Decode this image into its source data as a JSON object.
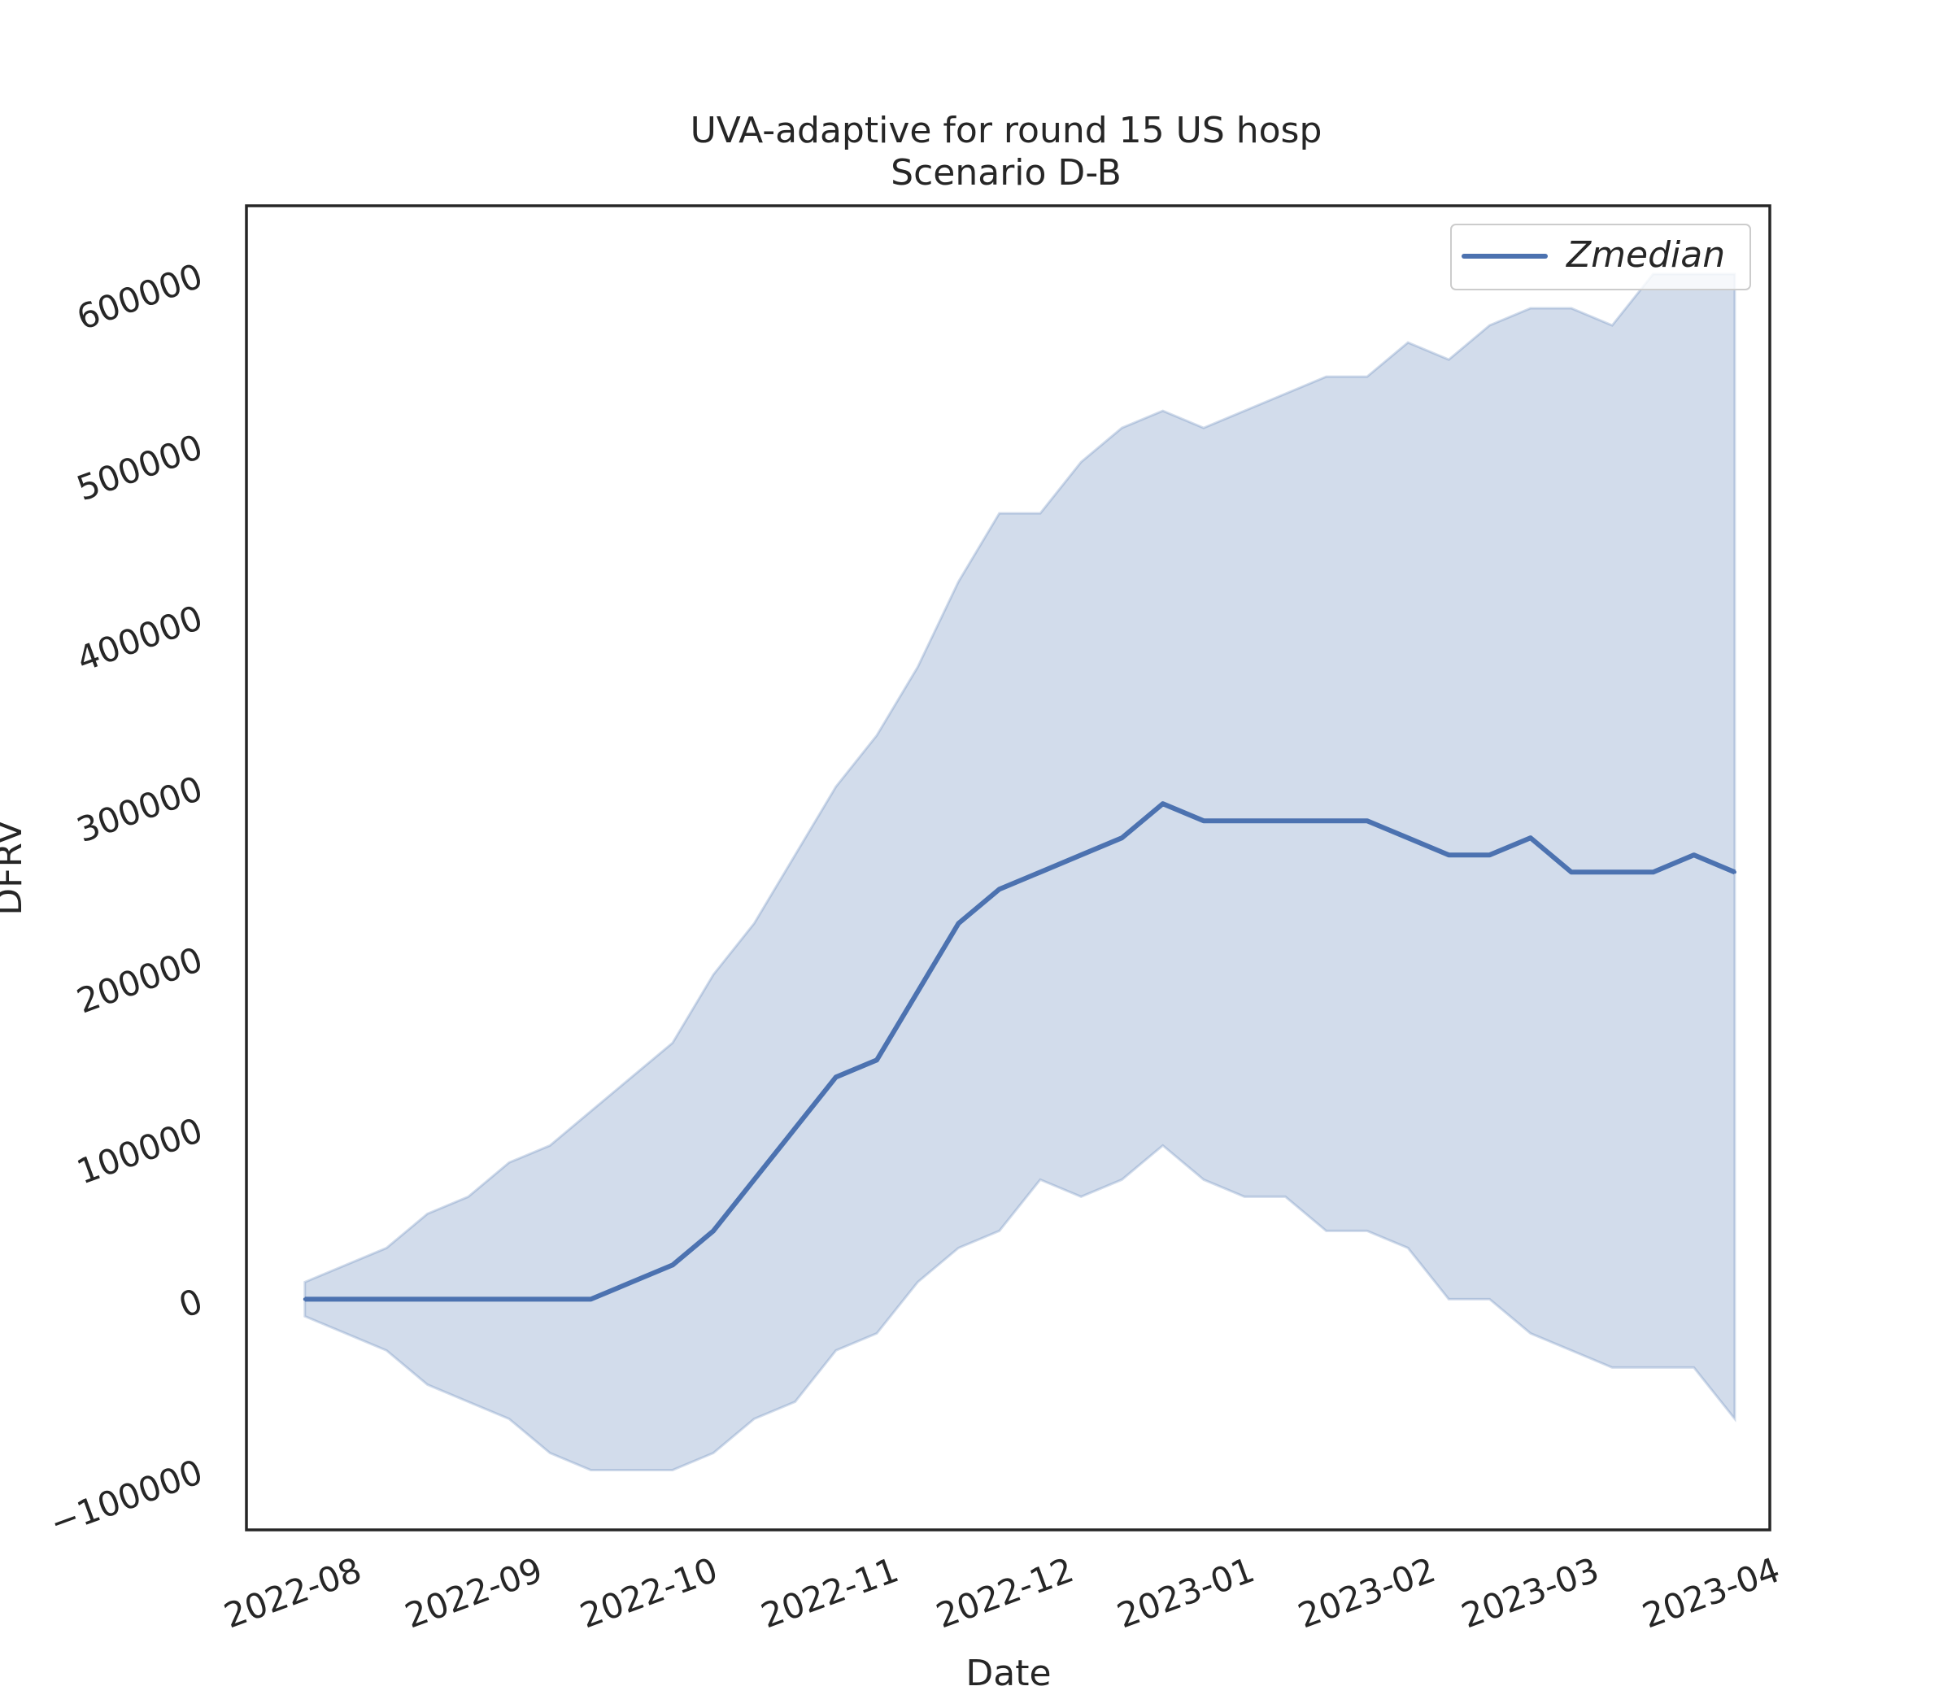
{
  "chart_data": {
    "type": "line",
    "title": "UVA-adaptive for round 15 US hosp",
    "subtitle": "Scenario D-B",
    "xlabel": "Date",
    "ylabel": "DFRV",
    "xlim": [
      "2022-07-13",
      "2023-03-31"
    ],
    "ylim": [
      -135000,
      640000
    ],
    "x_ticks": [
      "2022-08",
      "2022-09",
      "2022-10",
      "2022-11",
      "2022-12",
      "2023-01",
      "2023-02",
      "2023-03",
      "2023-04"
    ],
    "y_ticks": [
      -100000,
      0,
      100000,
      200000,
      300000,
      400000,
      500000,
      600000
    ],
    "y_tick_labels": [
      "−100000",
      "0",
      "100000",
      "200000",
      "300000",
      "400000",
      "500000",
      "600000"
    ],
    "grid": false,
    "legend": {
      "position": "top-right",
      "entries": [
        "Zmedian"
      ]
    },
    "colors": {
      "line": "#4c72b0",
      "band": "#4c72b0"
    },
    "x": [
      "2022-07-23",
      "2022-07-30",
      "2022-08-06",
      "2022-08-13",
      "2022-08-20",
      "2022-08-27",
      "2022-09-03",
      "2022-09-10",
      "2022-09-17",
      "2022-09-24",
      "2022-10-01",
      "2022-10-08",
      "2022-10-15",
      "2022-10-22",
      "2022-10-29",
      "2022-11-05",
      "2022-11-12",
      "2022-11-19",
      "2022-11-26",
      "2022-12-03",
      "2022-12-10",
      "2022-12-17",
      "2022-12-24",
      "2022-12-31",
      "2023-01-07",
      "2023-01-14",
      "2023-01-21",
      "2023-01-28",
      "2023-02-04",
      "2023-02-11",
      "2023-02-18",
      "2023-02-25",
      "2023-03-04",
      "2023-03-11",
      "2023-03-18",
      "2023-03-25"
    ],
    "series": [
      {
        "name": "Zmedian",
        "values": [
          0,
          0,
          0,
          0,
          0,
          0,
          0,
          0,
          10000,
          20000,
          40000,
          70000,
          100000,
          130000,
          140000,
          180000,
          220000,
          240000,
          250000,
          260000,
          270000,
          290000,
          280000,
          280000,
          280000,
          280000,
          280000,
          270000,
          260000,
          260000,
          270000,
          250000,
          250000,
          250000,
          260000,
          250000
        ]
      }
    ],
    "band": {
      "upper": [
        10000,
        20000,
        30000,
        50000,
        60000,
        80000,
        90000,
        110000,
        130000,
        150000,
        190000,
        220000,
        260000,
        300000,
        330000,
        370000,
        420000,
        460000,
        460000,
        490000,
        510000,
        520000,
        510000,
        520000,
        530000,
        540000,
        540000,
        560000,
        550000,
        570000,
        580000,
        580000,
        570000,
        600000,
        600000,
        600000
      ],
      "lower": [
        -10000,
        -20000,
        -30000,
        -50000,
        -60000,
        -70000,
        -90000,
        -100000,
        -100000,
        -100000,
        -90000,
        -70000,
        -60000,
        -30000,
        -20000,
        10000,
        30000,
        40000,
        70000,
        60000,
        70000,
        90000,
        70000,
        60000,
        60000,
        40000,
        40000,
        30000,
        0,
        0,
        -20000,
        -30000,
        -40000,
        -40000,
        -40000,
        -70000
      ]
    }
  }
}
